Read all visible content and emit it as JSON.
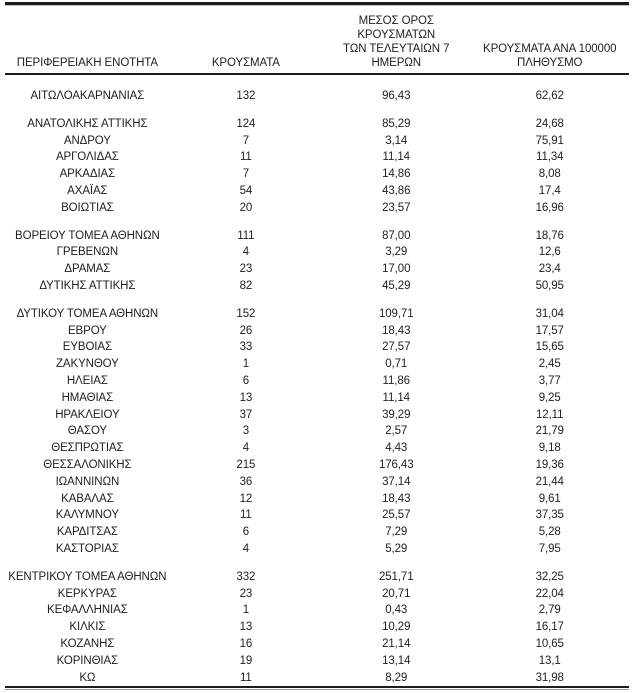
{
  "table": {
    "headers": {
      "region": "ΠΕΡΙΦΕΡΕΙΑΚΗ ΕΝΟΤΗΤΑ",
      "cases": "ΚΡΟΥΣΜΑΤΑ",
      "avg7": "ΜΕΣΟΣ ΟΡΟΣ ΚΡΟΥΣΜΑΤΩΝ\nΤΩΝ ΤΕΛΕΥΤΑΙΩΝ 7\nΗΜΕΡΩΝ",
      "per100k": "ΚΡΟΥΣΜΑΤΑ ΑΝΑ 100000\nΠΛΗΘΥΣΜΟ"
    },
    "groups": [
      {
        "rows": [
          {
            "region": "ΑΙΤΩΛΟΑΚΑΡΝΑΝΙΑΣ",
            "cases": "132",
            "avg7": "96,43",
            "per100k": "62,62"
          }
        ]
      },
      {
        "rows": [
          {
            "region": "ΑΝΑΤΟΛΙΚΗΣ ΑΤΤΙΚΗΣ",
            "cases": "124",
            "avg7": "85,29",
            "per100k": "24,68"
          },
          {
            "region": "ΑΝΔΡΟΥ",
            "cases": "7",
            "avg7": "3,14",
            "per100k": "75,91"
          },
          {
            "region": "ΑΡΓΟΛΙΔΑΣ",
            "cases": "11",
            "avg7": "11,14",
            "per100k": "11,34"
          },
          {
            "region": "ΑΡΚΑΔΙΑΣ",
            "cases": "7",
            "avg7": "14,86",
            "per100k": "8,08"
          },
          {
            "region": "ΑΧΑΪΑΣ",
            "cases": "54",
            "avg7": "43,86",
            "per100k": "17,4"
          },
          {
            "region": "ΒΟΙΩΤΙΑΣ",
            "cases": "20",
            "avg7": "23,57",
            "per100k": "16,96"
          }
        ]
      },
      {
        "rows": [
          {
            "region": "ΒΟΡΕΙΟΥ ΤΟΜΕΑ ΑΘΗΝΩΝ",
            "cases": "111",
            "avg7": "87,00",
            "per100k": "18,76"
          },
          {
            "region": "ΓΡΕΒΕΝΩΝ",
            "cases": "4",
            "avg7": "3,29",
            "per100k": "12,6"
          },
          {
            "region": "ΔΡΑΜΑΣ",
            "cases": "23",
            "avg7": "17,00",
            "per100k": "23,4"
          },
          {
            "region": "ΔΥΤΙΚΗΣ ΑΤΤΙΚΗΣ",
            "cases": "82",
            "avg7": "45,29",
            "per100k": "50,95"
          }
        ]
      },
      {
        "rows": [
          {
            "region": "ΔΥΤΙΚΟΥ ΤΟΜΕΑ ΑΘΗΝΩΝ",
            "cases": "152",
            "avg7": "109,71",
            "per100k": "31,04"
          },
          {
            "region": "ΕΒΡΟΥ",
            "cases": "26",
            "avg7": "18,43",
            "per100k": "17,57"
          },
          {
            "region": "ΕΥΒΟΙΑΣ",
            "cases": "33",
            "avg7": "27,57",
            "per100k": "15,65"
          },
          {
            "region": "ΖΑΚΥΝΘΟΥ",
            "cases": "1",
            "avg7": "0,71",
            "per100k": "2,45"
          },
          {
            "region": "ΗΛΕΙΑΣ",
            "cases": "6",
            "avg7": "11,86",
            "per100k": "3,77"
          },
          {
            "region": "ΗΜΑΘΙΑΣ",
            "cases": "13",
            "avg7": "11,14",
            "per100k": "9,25"
          },
          {
            "region": "ΗΡΑΚΛΕΙΟΥ",
            "cases": "37",
            "avg7": "39,29",
            "per100k": "12,11"
          },
          {
            "region": "ΘΑΣΟΥ",
            "cases": "3",
            "avg7": "2,57",
            "per100k": "21,79"
          },
          {
            "region": "ΘΕΣΠΡΩΤΙΑΣ",
            "cases": "4",
            "avg7": "4,43",
            "per100k": "9,18"
          },
          {
            "region": "ΘΕΣΣΑΛΟΝΙΚΗΣ",
            "cases": "215",
            "avg7": "176,43",
            "per100k": "19,36"
          },
          {
            "region": "ΙΩΑΝΝΙΝΩΝ",
            "cases": "36",
            "avg7": "37,14",
            "per100k": "21,44"
          },
          {
            "region": "ΚΑΒΑΛΑΣ",
            "cases": "12",
            "avg7": "18,43",
            "per100k": "9,61"
          },
          {
            "region": "ΚΑΛΥΜΝΟΥ",
            "cases": "11",
            "avg7": "25,57",
            "per100k": "37,35"
          },
          {
            "region": "ΚΑΡΔΙΤΣΑΣ",
            "cases": "6",
            "avg7": "7,29",
            "per100k": "5,28"
          },
          {
            "region": "ΚΑΣΤΟΡΙΑΣ",
            "cases": "4",
            "avg7": "5,29",
            "per100k": "7,95"
          }
        ]
      },
      {
        "rows": [
          {
            "region": "ΚΕΝΤΡΙΚΟΥ ΤΟΜΕΑ ΑΘΗΝΩΝ",
            "cases": "332",
            "avg7": "251,71",
            "per100k": "32,25"
          },
          {
            "region": "ΚΕΡΚΥΡΑΣ",
            "cases": "23",
            "avg7": "20,71",
            "per100k": "22,04"
          },
          {
            "region": "ΚΕΦΑΛΛΗΝΙΑΣ",
            "cases": "1",
            "avg7": "0,43",
            "per100k": "2,79"
          },
          {
            "region": "ΚΙΛΚΙΣ",
            "cases": "13",
            "avg7": "10,29",
            "per100k": "16,17"
          },
          {
            "region": "ΚΟΖΑΝΗΣ",
            "cases": "16",
            "avg7": "21,14",
            "per100k": "10,65"
          },
          {
            "region": "ΚΟΡΙΝΘΙΑΣ",
            "cases": "19",
            "avg7": "13,14",
            "per100k": "13,1"
          },
          {
            "region": "ΚΩ",
            "cases": "11",
            "avg7": "8,29",
            "per100k": "31,98"
          }
        ]
      }
    ],
    "colors": {
      "rule_dark": "#1c1c1c",
      "rule_shadow": "#9a9a9a",
      "text": "#1f1f1f",
      "background": "#ffffff"
    }
  }
}
